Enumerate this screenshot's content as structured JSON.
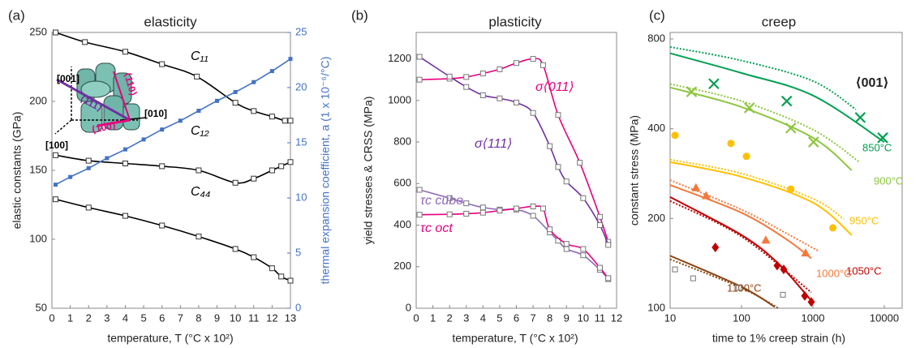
{
  "chart_data": [
    {
      "type": "line",
      "label": "(a)",
      "title": "elasticity",
      "x_label": "temperature, T (°C x 10²)",
      "y_label": "elastic constants (GPa)",
      "y2_label": "thermal expansion coefficient, a (1 x 10⁻⁶/°C)",
      "y2_color": "#4472c4",
      "xlim": [
        0,
        13
      ],
      "xticks": [
        0,
        1,
        2,
        3,
        4,
        5,
        6,
        7,
        8,
        9,
        10,
        11,
        12,
        13
      ],
      "ylim": [
        50,
        250
      ],
      "yticks": [
        50,
        100,
        150,
        200,
        250
      ],
      "y2lim": [
        0,
        25
      ],
      "y2ticks": [
        0,
        5,
        10,
        15,
        20,
        25
      ],
      "series": [
        {
          "name": "C₁₁",
          "color": "#000000",
          "marker": "square",
          "x": [
            0.2,
            1.8,
            4,
            6,
            7.9,
            10,
            11,
            12,
            12.7,
            13
          ],
          "values": [
            250,
            243,
            236,
            227,
            218,
            199,
            193,
            189,
            186,
            186
          ]
        },
        {
          "name": "C₁₂",
          "color": "#000000",
          "marker": "square",
          "x": [
            0.2,
            2,
            4,
            6,
            8,
            10,
            11,
            12,
            12.5,
            13
          ],
          "values": [
            161,
            157,
            155,
            153,
            150,
            141,
            144,
            150,
            153,
            156
          ]
        },
        {
          "name": "C₄₄",
          "color": "#000000",
          "marker": "square",
          "x": [
            0.2,
            2,
            4,
            6,
            8,
            10,
            11,
            12,
            12.5,
            13
          ],
          "values": [
            129,
            123,
            117,
            110,
            102,
            93,
            87,
            79,
            73,
            70
          ]
        },
        {
          "color": "#4472c4",
          "marker": "filled-square",
          "axis": "y2",
          "x": [
            0.2,
            1,
            2,
            3,
            4,
            5,
            6,
            7,
            8,
            9,
            10,
            11,
            12,
            13
          ],
          "values": [
            11.2,
            11.9,
            12.7,
            13.6,
            14.4,
            15.3,
            16.2,
            17.0,
            17.9,
            18.8,
            19.6,
            20.5,
            21.5,
            22.6
          ]
        }
      ],
      "annotations": [
        "[001]",
        "[010]",
        "[100]",
        "⟨111⟩",
        "⟨110⟩",
        "⟨100⟩"
      ]
    },
    {
      "type": "line",
      "label": "(b)",
      "title": "plasticity",
      "x_label": "temperature, T (°C x 10²)",
      "y_label": "yield stresses & CRSS (MPa)",
      "xlim": [
        0,
        12
      ],
      "xticks": [
        0,
        1,
        2,
        3,
        4,
        5,
        6,
        7,
        8,
        9,
        10,
        11,
        12
      ],
      "ylim": [
        0,
        1300
      ],
      "yticks": [
        0,
        200,
        400,
        600,
        800,
        1000,
        1200
      ],
      "series": [
        {
          "name": "σ⟨011⟩",
          "color": "#e6007e",
          "marker": "square",
          "x": [
            0.2,
            2,
            3,
            4,
            5,
            6,
            7,
            7.6,
            8.5,
            9.8,
            11,
            11.5
          ],
          "values": [
            1100,
            1105,
            1113,
            1130,
            1150,
            1180,
            1200,
            1170,
            930,
            700,
            440,
            320
          ]
        },
        {
          "name": "σ⟨111⟩",
          "color": "#7030a0",
          "marker": "square",
          "x": [
            0.2,
            2,
            3,
            4,
            5,
            6,
            7,
            8,
            8.5,
            9,
            10,
            11,
            11.5
          ],
          "values": [
            1210,
            1115,
            1065,
            1025,
            1010,
            990,
            940,
            780,
            680,
            610,
            530,
            400,
            305
          ]
        },
        {
          "name": "τc cube",
          "color": "#8e6ab8",
          "marker": "square",
          "x": [
            0.2,
            2,
            3,
            4,
            5,
            6,
            7,
            8,
            8.5,
            9,
            10,
            11,
            11.5
          ],
          "values": [
            570,
            530,
            505,
            485,
            475,
            475,
            445,
            365,
            325,
            285,
            255,
            185,
            140
          ]
        },
        {
          "name": "τc oct",
          "color": "#e6007e",
          "marker": "square",
          "x": [
            0.2,
            2,
            3,
            4,
            5,
            6,
            7,
            7.6,
            8,
            9,
            10,
            11,
            11.5
          ],
          "values": [
            450,
            452,
            455,
            460,
            470,
            480,
            490,
            480,
            380,
            310,
            285,
            195,
            145
          ]
        }
      ]
    },
    {
      "type": "scatter",
      "label": "(c)",
      "title": "creep",
      "x_label": "time to 1% creep strain (h)",
      "y_label": "constant stress (MPa)",
      "xlog": true,
      "ylog": true,
      "xlim": [
        10,
        10000
      ],
      "xticks": [
        10,
        100,
        1000,
        10000
      ],
      "ylim": [
        100,
        800
      ],
      "yticks": [
        100,
        200,
        400,
        800
      ],
      "series": [
        {
          "name": "850°C",
          "color": "#00a050",
          "marker": "x",
          "x": [
            41,
            430,
            4600,
            9500
          ],
          "values": [
            566,
            495,
            436,
            373
          ],
          "fit": {
            "x": [
              10,
              100,
              1000,
              10000
            ],
            "values": [
              716,
              615,
              517,
              361
            ]
          },
          "fit_dotted": {
            "x": [
              10,
              100,
              1000,
              4000
            ],
            "values": [
              752,
              677,
              578,
              464
            ]
          }
        },
        {
          "name": "900°C",
          "color": "#8dc63f",
          "marker": "x",
          "x": [
            20,
            129,
            490,
            1020
          ],
          "values": [
            532,
            470,
            402,
            361
          ],
          "fit": {
            "x": [
              10,
              100,
              1000,
              3500
            ],
            "values": [
              550,
              473,
              373,
              290
            ]
          },
          "fit_dotted": {
            "x": [
              10,
              100,
              1000,
              4500
            ],
            "values": [
              565,
              495,
              397,
              309
            ]
          }
        },
        {
          "name": "950°C",
          "color": "#ffc000",
          "marker": "circle",
          "x": [
            11.7,
            71,
            117,
            490,
            1900
          ],
          "values": [
            380,
            357,
            323,
            251,
            186
          ],
          "fit": {
            "x": [
              10,
              100,
              1000,
              3500
            ],
            "values": [
              309,
              276,
              226,
              176
            ]
          },
          "fit_dotted": {
            "x": [
              10,
              100,
              1000,
              2700
            ],
            "values": [
              315,
              283,
              233,
              199
            ]
          }
        },
        {
          "name": "1000°C",
          "color": "#f4793b",
          "marker": "triangle",
          "x": [
            23,
            32,
            219,
            790
          ],
          "values": [
            253,
            238,
            169,
            153
          ],
          "fit": {
            "x": [
              10,
              100,
              430,
              950
            ],
            "values": [
              259,
              209,
              170,
              147
            ]
          },
          "fit_dotted": {
            "x": [
              10,
              100,
              430,
              1230
            ],
            "values": [
              269,
              214,
              178,
              155
            ]
          }
        },
        {
          "name": "1050°C",
          "color": "#c00000",
          "marker": "diamond",
          "x": [
            43,
            316,
            390,
            770,
            950
          ],
          "values": [
            160,
            139,
            135,
            110,
            105
          ],
          "fit": {
            "x": [
              10,
              100,
              330,
              950
            ],
            "values": [
              236,
              176,
              141,
              106
            ]
          },
          "fit_dotted": {
            "x": [
              10,
              100,
              950
            ],
            "values": [
              229,
              174,
              113
            ]
          }
        },
        {
          "name": "1100°C",
          "color": "#8b4513",
          "marker": "square",
          "x": [
            11.7,
            21,
            92,
            380
          ],
          "values": [
            135,
            126,
            117,
            111
          ],
          "fit": {
            "x": [
              10,
              100,
              292
            ],
            "values": [
              150,
              118,
              101
            ]
          },
          "fit_dotted": {
            "x": [
              10,
              100,
              330
            ],
            "values": [
              146,
              117,
              100
            ]
          }
        }
      ],
      "annotations": [
        "⟨001⟩"
      ]
    }
  ]
}
